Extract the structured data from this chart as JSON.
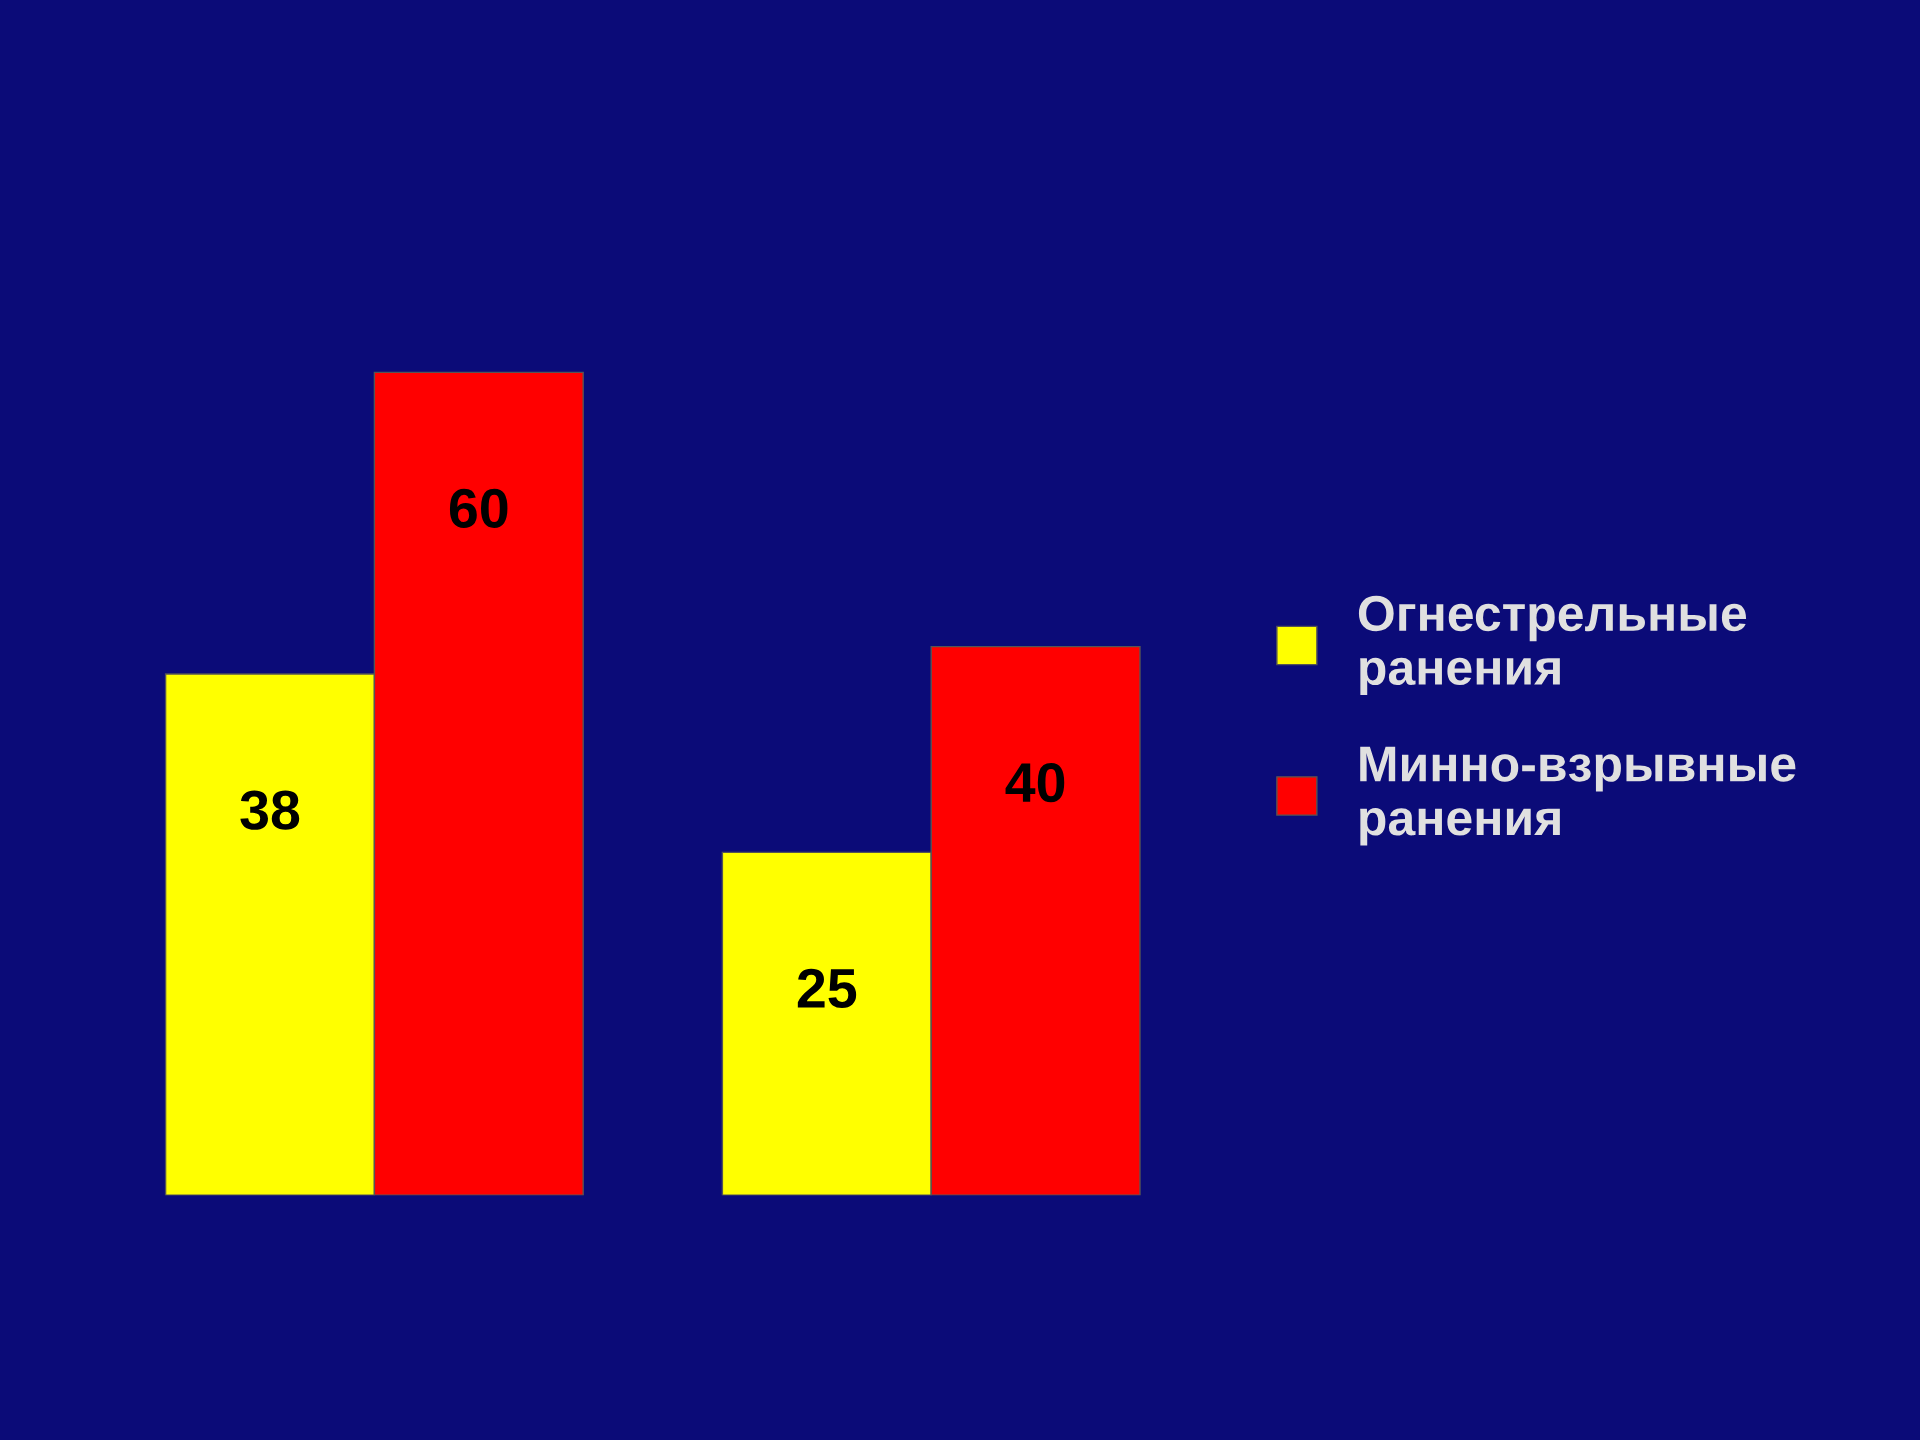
{
  "chart_data": {
    "type": "bar",
    "categories": [
      null,
      null
    ],
    "series": [
      {
        "name": "Огнестрельные\nранения",
        "color": "#ffff00",
        "values": [
          38,
          25
        ]
      },
      {
        "name": "Минно-взрывные\nранения",
        "color": "#ff0000",
        "values": [
          60,
          40
        ]
      }
    ],
    "data_labels": true,
    "legend": "right",
    "grid": false
  }
}
